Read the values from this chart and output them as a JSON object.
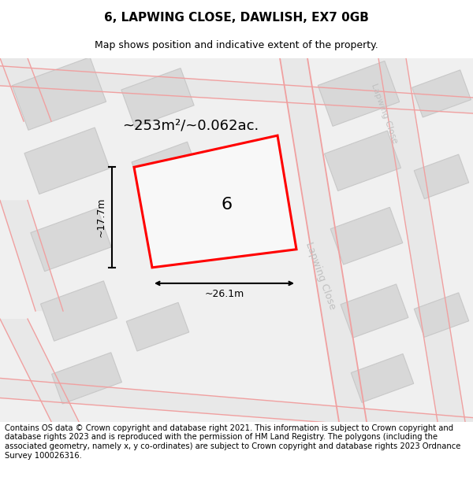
{
  "title": "6, LAPWING CLOSE, DAWLISH, EX7 0GB",
  "subtitle": "Map shows position and indicative extent of the property.",
  "footer": "Contains OS data © Crown copyright and database right 2021. This information is subject to Crown copyright and database rights 2023 and is reproduced with the permission of HM Land Registry. The polygons (including the associated geometry, namely x, y co-ordinates) are subject to Crown copyright and database rights 2023 Ordnance Survey 100026316.",
  "area_text": "~253m²/~0.062ac.",
  "dim_width": "~26.1m",
  "dim_height": "~17.7m",
  "plot_label": "6",
  "map_bg": "#efefef",
  "road_fill": "#e0e0e0",
  "road_line_color": "#f0a0a0",
  "plot_edge_color": "#ff0000",
  "plot_fill_color": "#f8f8f8",
  "building_fill": "#d8d8d8",
  "building_edge": "#c8c8c8",
  "street_label_color": "#c0c0c0",
  "ann_color": "#000000",
  "title_fontsize": 11,
  "subtitle_fontsize": 9,
  "footer_fontsize": 7.2,
  "area_fontsize": 13,
  "label_fontsize": 16,
  "dim_fontsize": 9,
  "street_fontsize": 9
}
